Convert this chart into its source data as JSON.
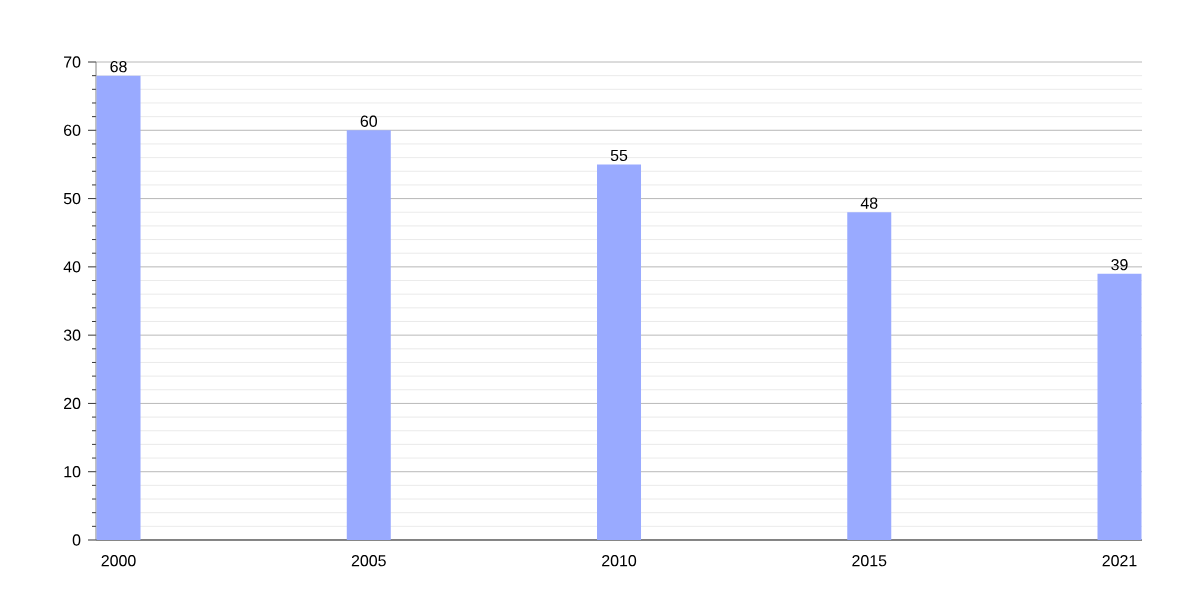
{
  "chart_data": {
    "type": "bar",
    "categories": [
      "2000",
      "2005",
      "2010",
      "2015",
      "2021"
    ],
    "values": [
      68,
      60,
      55,
      48,
      39
    ],
    "color": "#99aaff",
    "ylim": [
      0,
      70
    ],
    "yticks": [
      0,
      10,
      20,
      30,
      40,
      50,
      60,
      70
    ],
    "grid": "y",
    "data_labels": true
  }
}
